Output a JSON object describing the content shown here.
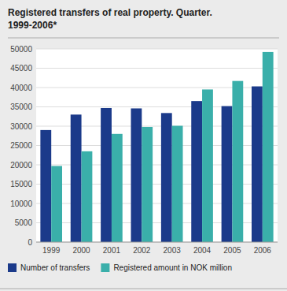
{
  "chart_data": {
    "type": "bar",
    "title": "Registered transfers of real property. Quarter.",
    "subtitle": "1999-2006*",
    "categories": [
      "1999",
      "2000",
      "2001",
      "2002",
      "2003",
      "2004",
      "2005",
      "2006"
    ],
    "series": [
      {
        "name": "Number of transfers",
        "color": "#1b3a8a",
        "values": [
          29000,
          33000,
          34700,
          34600,
          33400,
          36500,
          35200,
          40300
        ]
      },
      {
        "name": "Registered amount in NOK million",
        "color": "#3aafaa",
        "values": [
          19700,
          23500,
          28000,
          29800,
          30100,
          39500,
          41700,
          49200
        ]
      }
    ],
    "ylim": [
      0,
      50000
    ],
    "yticks": [
      0,
      5000,
      10000,
      15000,
      20000,
      25000,
      30000,
      35000,
      40000,
      45000,
      50000
    ],
    "grid": true,
    "legend": "bottom"
  }
}
